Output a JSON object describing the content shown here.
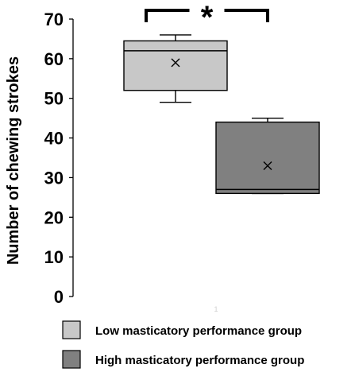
{
  "chart_data": {
    "type": "box",
    "ylabel": "Number of chewing strokes",
    "ylim": [
      0,
      70
    ],
    "yticks": [
      0,
      10,
      20,
      30,
      40,
      50,
      60,
      70
    ],
    "x_tick_label": "1",
    "series": [
      {
        "name": "Low masticatory performance group",
        "color": "#c8c8c8",
        "min": 49,
        "q1": 52,
        "median": 62,
        "q3": 64.5,
        "max": 66,
        "mean": 59
      },
      {
        "name": "High masticatory performance group",
        "color": "#808080",
        "min": 26,
        "q1": 26,
        "median": 27,
        "q3": 44,
        "max": 45,
        "mean": 33
      }
    ],
    "significance": {
      "label": "*",
      "between": [
        0,
        1
      ]
    },
    "legend_position": "bottom",
    "grid": false
  }
}
